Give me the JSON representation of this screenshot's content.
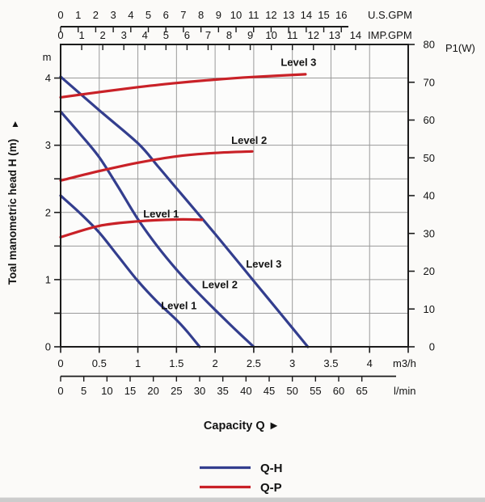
{
  "colors": {
    "qh": "#333e8e",
    "qp": "#c92127",
    "grid": "#9a9a9a",
    "axis": "#1c1c1c",
    "ink": "#131313",
    "plot_bg": "#fcfcfb",
    "page_bg": "#fbfaf8",
    "strip": "#cccccc"
  },
  "chart_data": {
    "type": "line",
    "grid": "on",
    "x": {
      "unit": "m3/h",
      "range": [
        0,
        4.5
      ],
      "ticks": [
        0,
        0.5,
        1,
        1.5,
        2,
        2.5,
        3,
        3.5,
        4
      ],
      "title": "Capacity Q  ►",
      "us_gpm": {
        "unit": "U.S.GPM",
        "ticks": [
          0,
          1,
          2,
          3,
          4,
          5,
          6,
          7,
          8,
          9,
          10,
          11,
          12,
          13,
          14,
          15,
          16
        ],
        "to_m3h": 0.22712
      },
      "imp_gpm": {
        "unit": "IMP.GPM",
        "ticks": [
          0,
          1,
          2,
          3,
          4,
          5,
          6,
          7,
          8,
          9,
          10,
          11,
          12,
          13,
          14
        ],
        "to_m3h": 0.27276
      },
      "l_min": {
        "unit": "l/min",
        "ticks": [
          0,
          5,
          10,
          15,
          20,
          25,
          30,
          35,
          40,
          45,
          50,
          55,
          60,
          65
        ],
        "to_m3h": 0.06
      }
    },
    "y_left": {
      "unit": "m",
      "range": [
        0,
        4.5
      ],
      "tick_step": 0.5,
      "labels": [
        4,
        3,
        2,
        1,
        0
      ],
      "title": "Toal manometric head H (m)",
      "arrow": "▲"
    },
    "y_right": {
      "unit": "P1(W)",
      "range": [
        0,
        80
      ],
      "ticks": [
        80,
        70,
        60,
        50,
        40,
        30,
        20,
        10,
        0
      ]
    },
    "legend": {
      "position": "bottom",
      "items": [
        {
          "label": "Q-H",
          "color_role": "qh"
        },
        {
          "label": "Q-P",
          "color_role": "qp"
        }
      ]
    },
    "series": [
      {
        "id": "qh1",
        "name": "Q-H Level 1",
        "curve": "Q-H",
        "axis": "left",
        "color_role": "qh",
        "label": "Level 1",
        "label_at": [
          1.3,
          0.56
        ],
        "points": [
          [
            0,
            2.25
          ],
          [
            0.25,
            1.99
          ],
          [
            0.5,
            1.7
          ],
          [
            0.75,
            1.34
          ],
          [
            1.0,
            0.98
          ],
          [
            1.25,
            0.67
          ],
          [
            1.5,
            0.4
          ],
          [
            1.65,
            0.21
          ],
          [
            1.8,
            0
          ]
        ]
      },
      {
        "id": "qh2",
        "name": "Q-H Level 2",
        "curve": "Q-H",
        "axis": "left",
        "color_role": "qh",
        "label": "Level 2",
        "label_at": [
          1.83,
          0.87
        ],
        "points": [
          [
            0,
            3.5
          ],
          [
            0.25,
            3.17
          ],
          [
            0.5,
            2.82
          ],
          [
            0.75,
            2.37
          ],
          [
            1.0,
            1.9
          ],
          [
            1.25,
            1.5
          ],
          [
            1.5,
            1.15
          ],
          [
            1.75,
            0.84
          ],
          [
            2.0,
            0.55
          ],
          [
            2.25,
            0.27
          ],
          [
            2.5,
            0
          ]
        ]
      },
      {
        "id": "qh3",
        "name": "Q-H Level 3",
        "curve": "Q-H",
        "axis": "left",
        "color_role": "qh",
        "label": "Level 3",
        "label_at": [
          2.4,
          1.18
        ],
        "points": [
          [
            0,
            4.02
          ],
          [
            0.5,
            3.52
          ],
          [
            1.0,
            3.03
          ],
          [
            1.25,
            2.7
          ],
          [
            1.5,
            2.36
          ],
          [
            2.0,
            1.68
          ],
          [
            2.5,
            0.98
          ],
          [
            3.0,
            0.28
          ],
          [
            3.2,
            0
          ]
        ]
      },
      {
        "id": "qp1",
        "name": "Q-P Level 1",
        "curve": "Q-P",
        "axis": "right",
        "color_role": "qp",
        "label": "Level 1",
        "label_at": [
          1.07,
          34.2
        ],
        "points": [
          [
            0,
            29.0
          ],
          [
            0.5,
            32.0
          ],
          [
            1.0,
            33.2
          ],
          [
            1.5,
            33.7
          ],
          [
            1.83,
            33.6
          ]
        ]
      },
      {
        "id": "qp2",
        "name": "Q-P Level 2",
        "curve": "Q-P",
        "axis": "right",
        "color_role": "qp",
        "label": "Level 2",
        "label_at": [
          2.21,
          53.7
        ],
        "points": [
          [
            0,
            44.0
          ],
          [
            0.5,
            46.5
          ],
          [
            1.0,
            48.7
          ],
          [
            1.5,
            50.4
          ],
          [
            2.0,
            51.3
          ],
          [
            2.48,
            51.7
          ]
        ]
      },
      {
        "id": "qp3",
        "name": "Q-P Level 3",
        "curve": "Q-P",
        "axis": "right",
        "color_role": "qp",
        "label": "Level 3",
        "label_at": [
          2.85,
          74.3
        ],
        "points": [
          [
            0,
            66.0
          ],
          [
            0.5,
            67.4
          ],
          [
            1.0,
            68.7
          ],
          [
            1.5,
            69.8
          ],
          [
            2.0,
            70.7
          ],
          [
            2.5,
            71.4
          ],
          [
            3.17,
            72.1
          ]
        ]
      }
    ]
  }
}
